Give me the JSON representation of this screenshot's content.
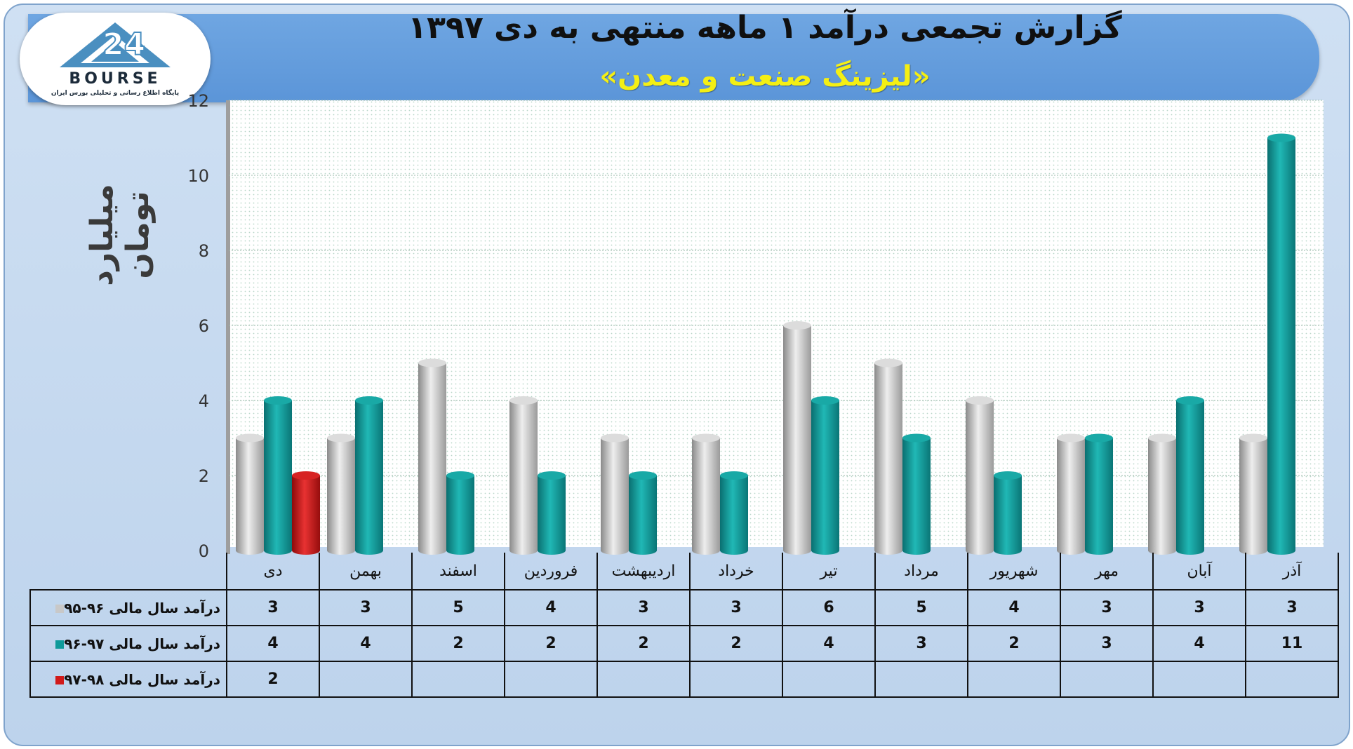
{
  "header": {
    "title": "گزارش تجمعی درآمد ۱ ماهه منتهی به دی ۱۳۹۷",
    "subtitle": "«لیزینگ صنعت و معدن»"
  },
  "logo": {
    "word": "BOURSE",
    "sub": "پایگاه اطلاع رسانی و تحلیلی بورس ایران"
  },
  "colors": {
    "series_1": "#c8c8c8",
    "series_2": "#0f9a9a",
    "series_3": "#d11a1a"
  },
  "chart_data": {
    "type": "bar",
    "ylabel": "میلیارد تومان",
    "ylim": [
      0,
      12
    ],
    "yticks": [
      0,
      2,
      4,
      6,
      8,
      10,
      12
    ],
    "grid": true,
    "categories": [
      "دی",
      "بهمن",
      "اسفند",
      "فروردین",
      "اردیبهشت",
      "خرداد",
      "تیر",
      "مرداد",
      "شهریور",
      "مهر",
      "آبان",
      "آذر"
    ],
    "series": [
      {
        "name": "درآمد سال مالی ۹۶-۹۵",
        "values": [
          3,
          3,
          5,
          4,
          3,
          3,
          6,
          5,
          4,
          3,
          3,
          3
        ]
      },
      {
        "name": "درآمد سال مالی ۹۷-۹۶",
        "values": [
          4,
          4,
          2,
          2,
          2,
          2,
          4,
          3,
          2,
          3,
          4,
          11
        ]
      },
      {
        "name": "درآمد سال مالی ۹۸-۹۷",
        "values": [
          2,
          null,
          null,
          null,
          null,
          null,
          null,
          null,
          null,
          null,
          null,
          null
        ]
      }
    ]
  }
}
